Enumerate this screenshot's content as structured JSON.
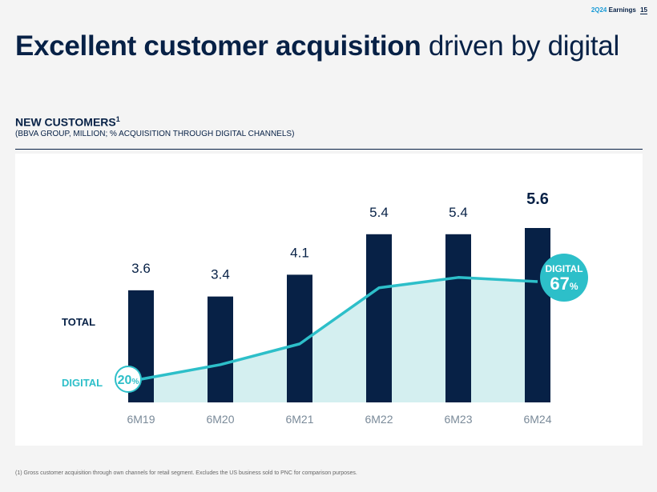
{
  "header": {
    "period": "2Q24",
    "section": "Earnings",
    "page": "15"
  },
  "title": {
    "bold": "Excellent customer acquisition",
    "regular": " driven by digital"
  },
  "subhead": {
    "label": "NEW CUSTOMERS",
    "sup": "1",
    "note": "(BBVA GROUP, MILLION; % ACQUISITION THROUGH DIGITAL CHANNELS)"
  },
  "footnote": "(1) Gross customer acquisition through own channels for retail segment. Excludes the US business sold to PNC for comparison purposes.",
  "colors": {
    "navy": "#072146",
    "teal": "#2dbfc9",
    "tealFill": "#d4eff0",
    "axis": "#7a8a99"
  },
  "chart_data": {
    "type": "bar",
    "title": "NEW CUSTOMERS",
    "categories": [
      "6M19",
      "6M20",
      "6M21",
      "6M22",
      "6M23",
      "6M24"
    ],
    "series": [
      {
        "name": "TOTAL",
        "type": "bar",
        "values": [
          3.6,
          3.4,
          4.1,
          5.4,
          5.4,
          5.6
        ],
        "labels": [
          "3.6",
          "3.4",
          "4.1",
          "5.4",
          "5.4",
          "5.6"
        ]
      },
      {
        "name": "DIGITAL",
        "type": "area",
        "unit": "%",
        "values": [
          20,
          27,
          37,
          64,
          69,
          67
        ]
      }
    ],
    "series_legend": {
      "total": "TOTAL",
      "digital": "DIGITAL"
    },
    "digital_start_label": {
      "value": "20",
      "unit": "%"
    },
    "digital_end_label": {
      "caption": "DIGITAL",
      "value": "67",
      "unit": "%"
    },
    "ylim": [
      0,
      6
    ]
  }
}
